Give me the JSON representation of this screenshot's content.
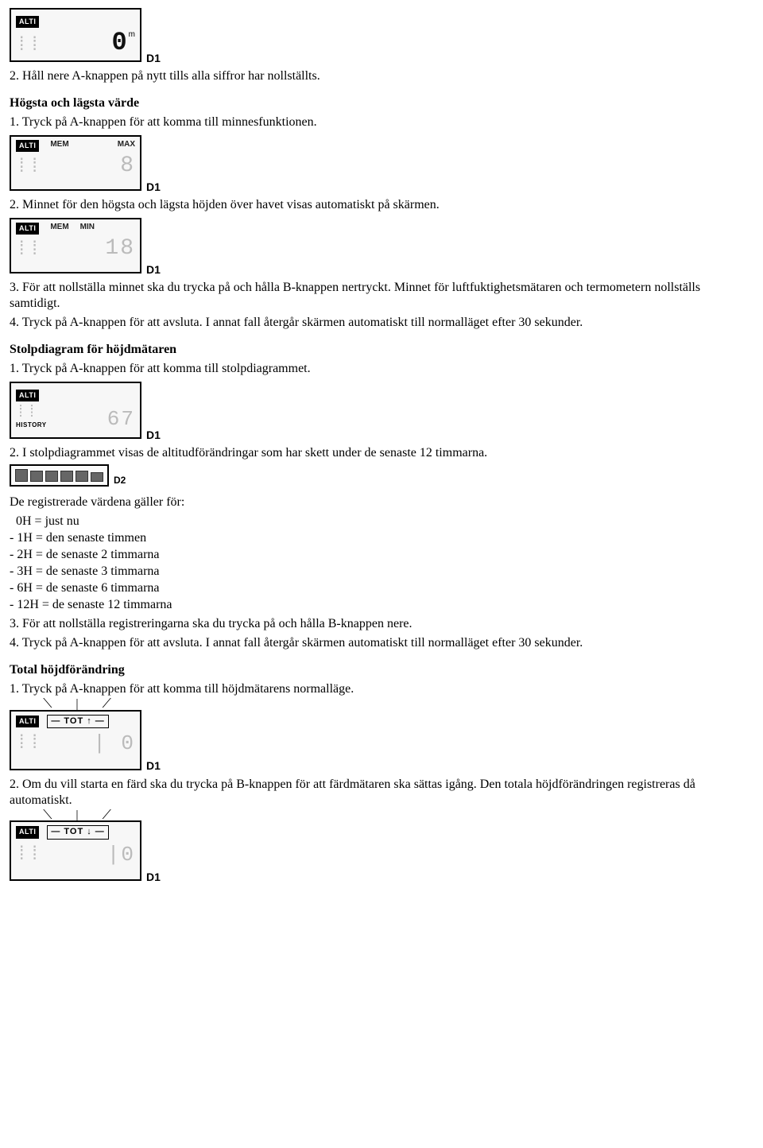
{
  "lcd1": {
    "tag": "ALTI",
    "value": "0",
    "unit": "m",
    "caption": "D1"
  },
  "step2": "2. Håll nere A-knappen på nytt tills alla siffror har nollställts.",
  "heading_hogsta": "Högsta och lägsta värde",
  "hogsta_step1": "1. Tryck på A-knappen för att komma till minnesfunktionen.",
  "lcd2": {
    "tag": "ALTI",
    "mem": "MEM",
    "mode": "MAX",
    "caption": "D1"
  },
  "hogsta_step2": "2. Minnet för den högsta och lägsta höjden över havet visas automatiskt på skärmen.",
  "lcd3": {
    "tag": "ALTI",
    "mem": "MEM",
    "mode": "MIN",
    "caption": "D1"
  },
  "hogsta_step3": "3. För att nollställa minnet ska du trycka på och hålla B-knappen nertryckt. Minnet för luftfuktighetsmätaren och termometern nollställs samtidigt.",
  "hogsta_step4": "4. Tryck på A-knappen för att avsluta. I annat fall återgår skärmen automatiskt till normalläget efter 30 sekunder.",
  "heading_stolp": "Stolpdiagram för höjdmätaren",
  "stolp_step1": "1. Tryck på A-knappen för att komma till stolpdiagrammet.",
  "lcd4": {
    "tag": "ALTI",
    "history": "HISTORY",
    "caption": "D1"
  },
  "stolp_step2": "2. I stolpdiagrammet visas de altitudförändringar som har skett under de senaste 12 timmarna.",
  "bars": {
    "heights": [
      14,
      12,
      12,
      12,
      12,
      10
    ],
    "caption": "D2"
  },
  "registered_intro": "De registrerade värdena gäller för:",
  "reg_lines": [
    "  0H = just nu",
    "- 1H = den senaste timmen",
    "- 2H = de senaste 2 timmarna",
    "- 3H = de senaste 3 timmarna",
    "- 6H = de senaste 6 timmarna",
    "- 12H = de senaste 12 timmarna"
  ],
  "stolp_step3": "3. För att nollställa registreringarna ska du trycka på och hålla B-knappen nere.",
  "stolp_step4": "4. Tryck på A-knappen för att avsluta. I annat fall återgår skärmen automatiskt till normalläget efter 30 sekunder.",
  "heading_total": "Total höjdförändring",
  "total_step1": "1. Tryck på A-knappen för att komma till höjdmätarens normalläge.",
  "lcd5": {
    "tag": "ALTI",
    "tot": "— TOT ↑ —",
    "caption": "D1"
  },
  "total_step2": "2. Om du vill starta en färd ska du trycka på B-knappen för att färdmätaren ska sättas igång. Den totala höjdförändringen registreras då automatiskt.",
  "lcd6": {
    "tag": "ALTI",
    "tot": "— TOT ↓ —",
    "caption": "D1"
  }
}
